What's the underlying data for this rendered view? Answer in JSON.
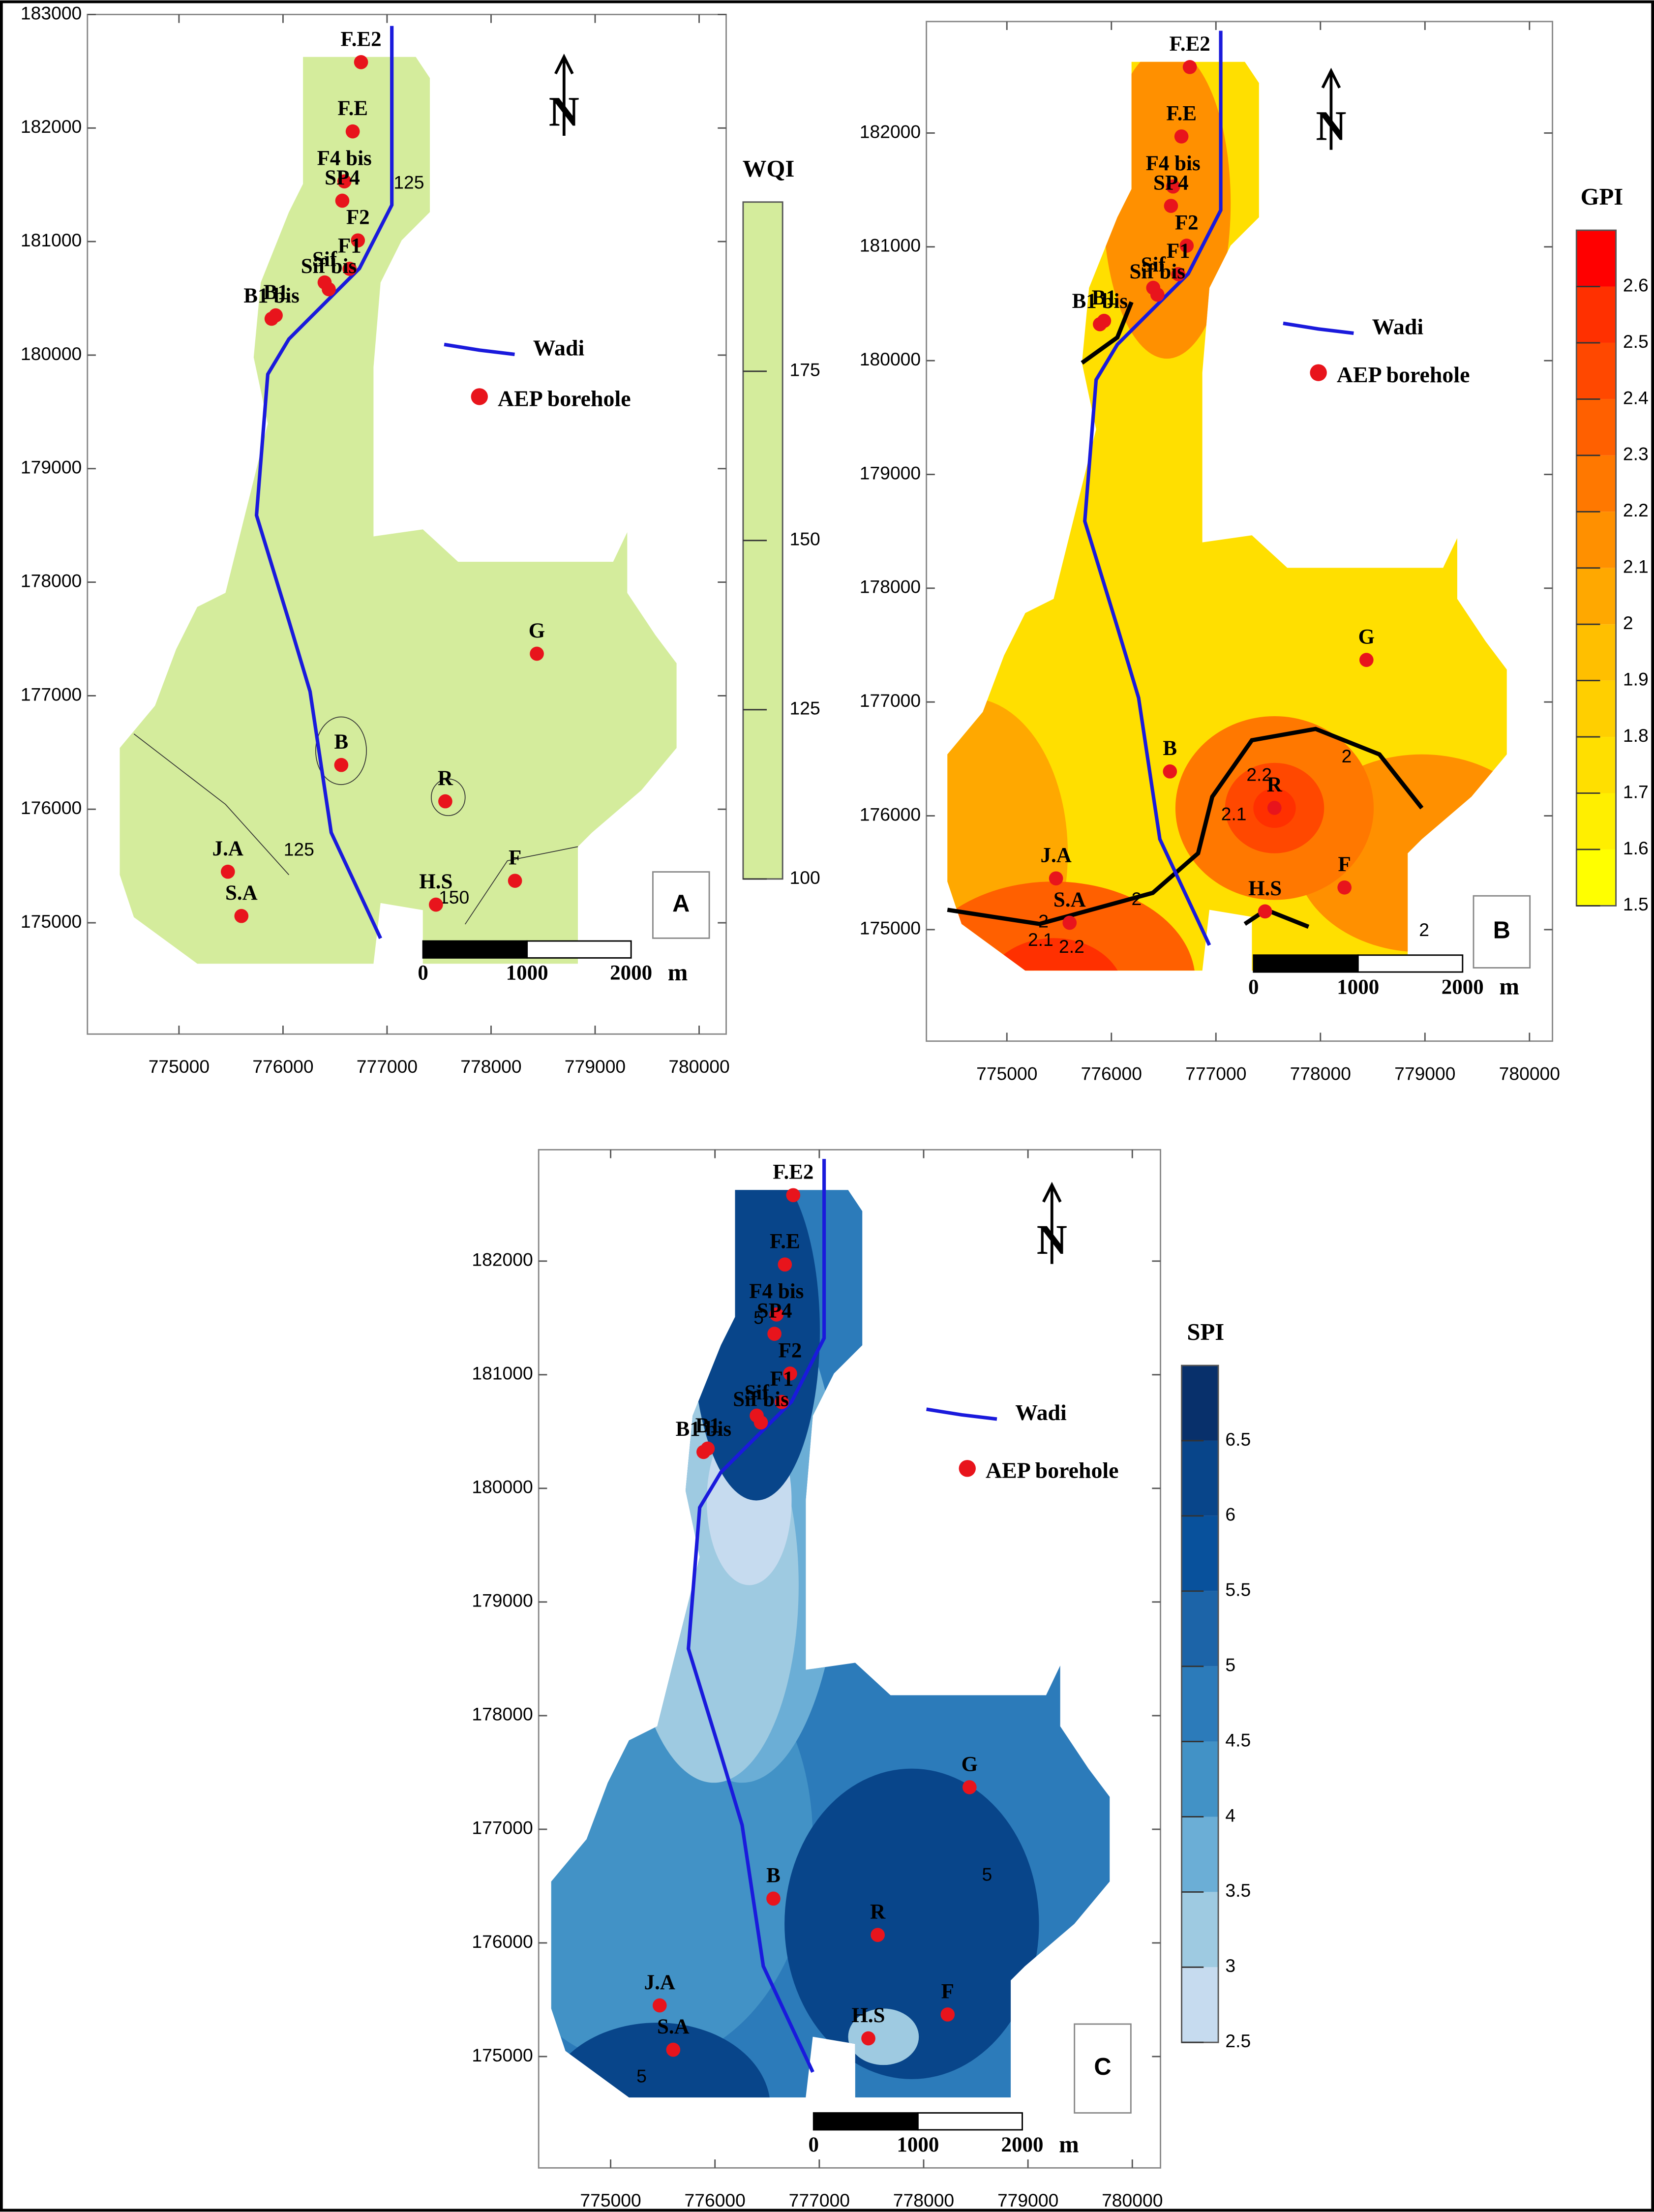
{
  "boreholes": [
    {
      "name": "F.E2",
      "x": 776750,
      "y": 182580
    },
    {
      "name": "F.E",
      "x": 776670,
      "y": 181970
    },
    {
      "name": "F4 bis",
      "x": 776590,
      "y": 181530
    },
    {
      "name": "SP4",
      "x": 776570,
      "y": 181360
    },
    {
      "name": "F2",
      "x": 776720,
      "y": 181010
    },
    {
      "name": "F1",
      "x": 776640,
      "y": 180760
    },
    {
      "name": "Sif",
      "x": 776400,
      "y": 180640
    },
    {
      "name": "Sif bis",
      "x": 776440,
      "y": 180580
    },
    {
      "name": "B1",
      "x": 775930,
      "y": 180350
    },
    {
      "name": "B1 bis",
      "x": 775890,
      "y": 180320
    },
    {
      "name": "G",
      "x": 778440,
      "y": 177370
    },
    {
      "name": "B",
      "x": 776560,
      "y": 176390
    },
    {
      "name": "R",
      "x": 777560,
      "y": 176070
    },
    {
      "name": "J.A",
      "x": 775470,
      "y": 175450
    },
    {
      "name": "S.A",
      "x": 775600,
      "y": 175060
    },
    {
      "name": "H.S",
      "x": 777470,
      "y": 175160
    },
    {
      "name": "F",
      "x": 778230,
      "y": 175370
    }
  ],
  "legend": {
    "wadi": "Wadi",
    "borehole": "AEP borehole"
  },
  "north": "N",
  "scale_bar": {
    "ticks": [
      0,
      1000,
      2000
    ],
    "unit": "m"
  },
  "panels": [
    {
      "label": "A",
      "xlim": [
        774120,
        780260
      ],
      "ylim": [
        174020,
        183000
      ],
      "xticks": [
        775000,
        776000,
        777000,
        778000,
        779000,
        780000
      ],
      "yticks": [
        175000,
        176000,
        177000,
        178000,
        179000,
        180000,
        181000,
        182000,
        183000
      ],
      "colorbar": {
        "title": "WQI",
        "lim": [
          100,
          200
        ],
        "ticks": [
          100,
          125,
          150,
          175
        ],
        "colors": [
          "#d4ec9c"
        ]
      },
      "contour_labels": [
        125,
        125,
        150
      ]
    },
    {
      "label": "B",
      "xlim": [
        774230,
        780220
      ],
      "ylim": [
        174020,
        182980
      ],
      "xticks": [
        775000,
        776000,
        777000,
        778000,
        779000,
        780000
      ],
      "yticks": [
        175000,
        176000,
        177000,
        178000,
        179000,
        180000,
        181000,
        182000
      ],
      "colorbar": {
        "title": "GPI",
        "lim": [
          1.5,
          2.7
        ],
        "ticks": [
          1.5,
          1.6,
          1.7,
          1.8,
          1.9,
          2,
          2.1,
          2.2,
          2.3,
          2.4,
          2.5,
          2.6
        ],
        "colors": [
          "#ffff00",
          "#ffef00",
          "#ffdf00",
          "#ffcf00",
          "#ffbf00",
          "#ffa800",
          "#ff9000",
          "#ff7800",
          "#ff6000",
          "#ff4800",
          "#ff3000",
          "#ff0000"
        ]
      },
      "contour_labels": [
        2,
        2,
        2.1,
        2.2,
        2.1,
        2.2,
        2,
        2
      ]
    },
    {
      "label": "C",
      "xlim": [
        774310,
        780270
      ],
      "ylim": [
        174020,
        182980
      ],
      "xticks": [
        775000,
        776000,
        777000,
        778000,
        779000,
        780000
      ],
      "yticks": [
        175000,
        176000,
        177000,
        178000,
        179000,
        180000,
        181000,
        182000
      ],
      "colorbar": {
        "title": "SPI",
        "lim": [
          2.5,
          7
        ],
        "ticks": [
          2.5,
          3,
          3.5,
          4,
          4.5,
          5,
          5.5,
          6,
          6.5
        ],
        "colors": [
          "#c6dbef",
          "#9ecae1",
          "#6baed6",
          "#4292c6",
          "#2c7bba",
          "#1c64a8",
          "#08519c",
          "#08458a",
          "#08306b"
        ]
      },
      "contour_labels": [
        5,
        5,
        5
      ]
    }
  ]
}
